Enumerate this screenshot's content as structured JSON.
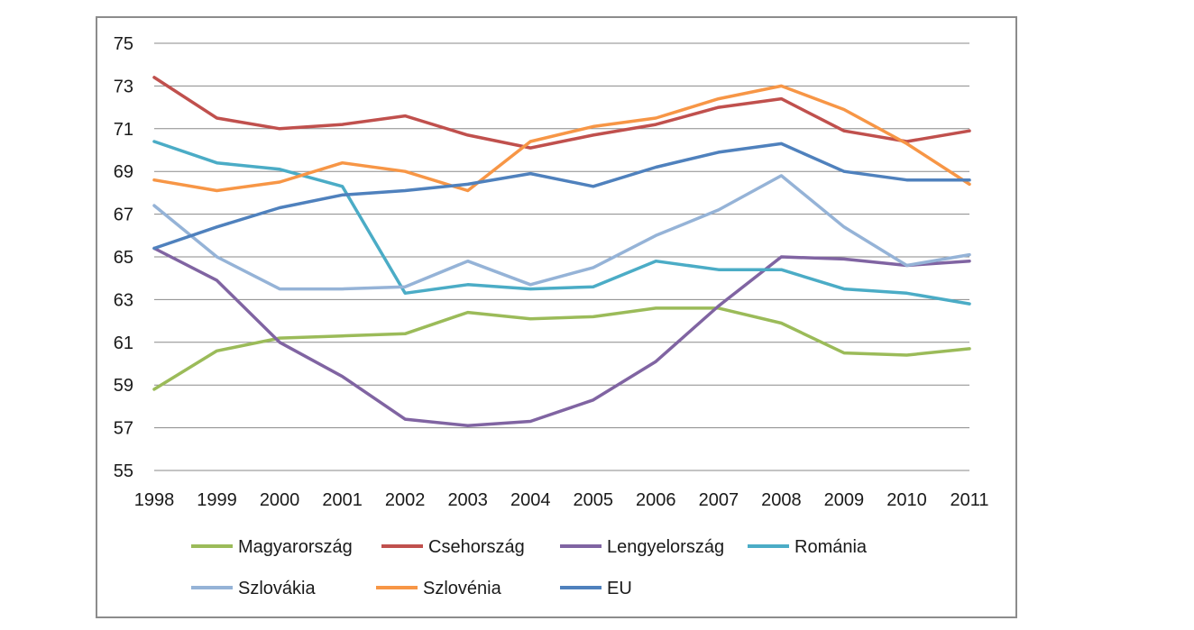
{
  "chart_data": {
    "type": "line",
    "x": [
      1998,
      1999,
      2000,
      2001,
      2002,
      2003,
      2004,
      2005,
      2006,
      2007,
      2008,
      2009,
      2010,
      2011
    ],
    "x_tick_labels": [
      "1998",
      "1999",
      "2000",
      "2001",
      "2002",
      "2003",
      "2004",
      "2005",
      "2006",
      "2007",
      "2008",
      "2009",
      "2010",
      "2011"
    ],
    "ylim": [
      55,
      75
    ],
    "y_ticks": [
      55,
      57,
      59,
      61,
      63,
      65,
      67,
      69,
      71,
      73,
      75
    ],
    "y_tick_labels": [
      "55",
      "57",
      "59",
      "61",
      "63",
      "65",
      "67",
      "69",
      "71",
      "73",
      "75"
    ],
    "grid": true,
    "legend_position": "bottom",
    "series": [
      {
        "name": "Magyarország",
        "color": "#9bbb59",
        "values": [
          58.8,
          60.6,
          61.2,
          61.3,
          61.4,
          62.4,
          62.1,
          62.2,
          62.6,
          62.6,
          61.9,
          60.5,
          60.4,
          60.7
        ]
      },
      {
        "name": "Csehország",
        "color": "#c0504d",
        "values": [
          73.4,
          71.5,
          71.0,
          71.2,
          71.6,
          70.7,
          70.1,
          70.7,
          71.2,
          72.0,
          72.4,
          70.9,
          70.4,
          70.9
        ]
      },
      {
        "name": "Lengyelország",
        "color": "#8064a2",
        "values": [
          65.4,
          63.9,
          61.0,
          59.4,
          57.4,
          57.1,
          57.3,
          58.3,
          60.1,
          62.7,
          65.0,
          64.9,
          64.6,
          64.8
        ]
      },
      {
        "name": "Románia",
        "color": "#4bacc6",
        "values": [
          70.4,
          69.4,
          69.1,
          68.3,
          63.3,
          63.7,
          63.5,
          63.6,
          64.8,
          64.4,
          64.4,
          63.5,
          63.3,
          62.8
        ]
      },
      {
        "name": "Szlovákia",
        "color": "#95b3d7",
        "values": [
          67.4,
          65.0,
          63.5,
          63.5,
          63.6,
          64.8,
          63.7,
          64.5,
          66.0,
          67.2,
          68.8,
          66.4,
          64.6,
          65.1
        ]
      },
      {
        "name": "Szlovénia",
        "color": "#f79646",
        "values": [
          68.6,
          68.1,
          68.5,
          69.4,
          69.0,
          68.1,
          70.4,
          71.1,
          71.5,
          72.4,
          73.0,
          71.9,
          70.3,
          68.4
        ]
      },
      {
        "name": "EU",
        "color": "#4f81bd",
        "values": [
          65.4,
          66.4,
          67.3,
          67.9,
          68.1,
          68.4,
          68.9,
          68.3,
          69.2,
          69.9,
          70.3,
          69.0,
          68.6,
          68.6
        ]
      }
    ]
  }
}
